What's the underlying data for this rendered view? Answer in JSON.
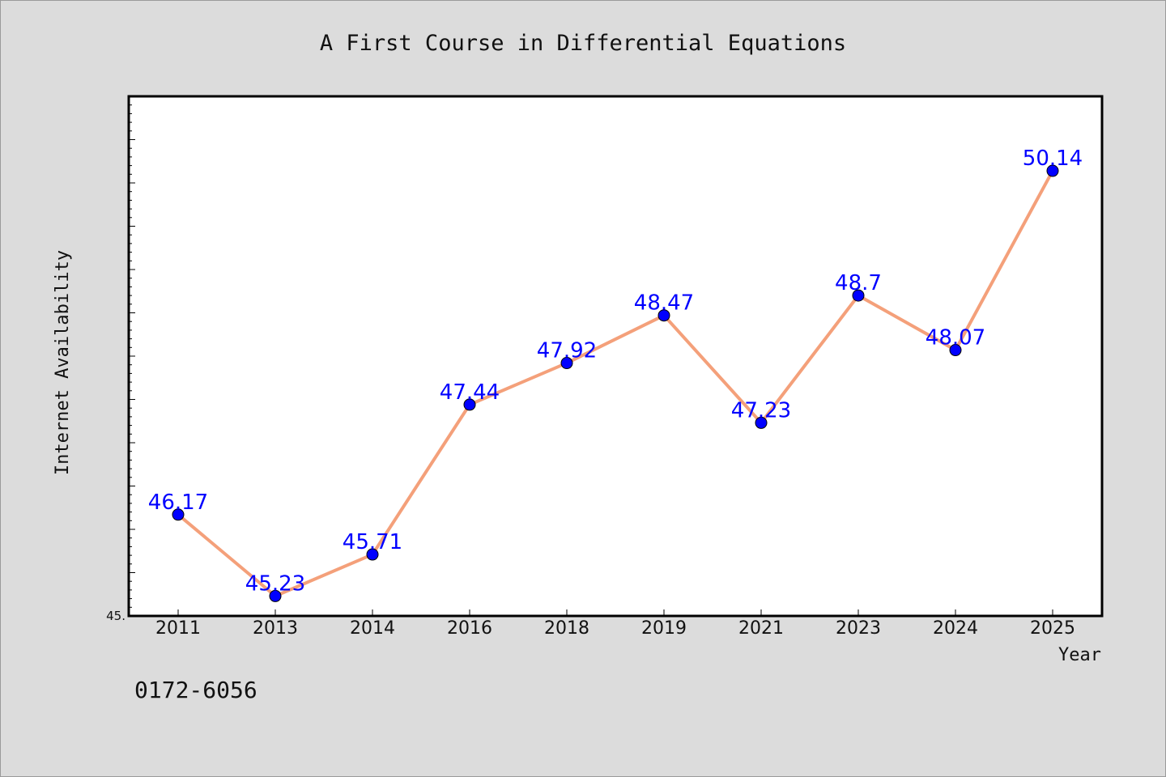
{
  "chart_data": {
    "type": "line",
    "title": "A First Course in Differential Equations",
    "xlabel": "Year",
    "ylabel": "Internet Availability",
    "categories": [
      "2011",
      "2013",
      "2014",
      "2016",
      "2018",
      "2019",
      "2021",
      "2023",
      "2024",
      "2025"
    ],
    "series": [
      {
        "values": [
          46.17,
          45.23,
          45.71,
          47.44,
          47.92,
          48.47,
          47.23,
          48.7,
          48.07,
          50.14
        ]
      }
    ],
    "data_labels": [
      "46.17",
      "45.23",
      "45.71",
      "47.44",
      "47.92",
      "48.47",
      "47.23",
      "48.7",
      "48.07",
      "50.14"
    ],
    "ylim": [
      45,
      51
    ],
    "y_tick_labels": [
      "45."
    ],
    "grid": false,
    "legend": "none",
    "colors": {
      "line": "#f4a07a",
      "marker": "#0000ff",
      "data_label": "#0000ff",
      "background": "#dcdcdc",
      "plot_background": "#ffffff"
    }
  },
  "footer": {
    "text": "0172-6056"
  }
}
